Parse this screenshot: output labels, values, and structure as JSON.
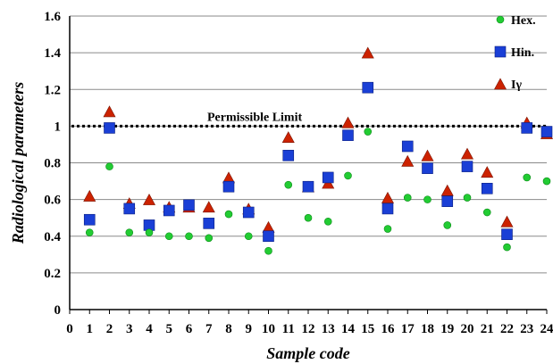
{
  "chart_data": {
    "type": "scatter",
    "title": "",
    "xlabel": "Sample code",
    "ylabel": "Radiological parameters",
    "x": [
      1,
      2,
      3,
      4,
      5,
      6,
      7,
      8,
      9,
      10,
      11,
      12,
      13,
      14,
      15,
      16,
      17,
      18,
      19,
      20,
      21,
      22,
      23,
      24
    ],
    "xlim": [
      0,
      24
    ],
    "ylim": [
      0,
      1.6
    ],
    "xticks": [
      0,
      1,
      2,
      3,
      4,
      5,
      6,
      7,
      8,
      9,
      10,
      11,
      12,
      13,
      14,
      15,
      16,
      17,
      18,
      19,
      20,
      21,
      22,
      23,
      24
    ],
    "yticks": [
      0,
      0.2,
      0.4,
      0.6,
      0.8,
      1,
      1.2,
      1.4,
      1.6
    ],
    "grid": "horizontal",
    "legend_position": "top-right",
    "series": [
      {
        "name": "Hex.",
        "marker": "circle",
        "color": "#22cc33",
        "values": [
          0.42,
          0.78,
          0.42,
          0.42,
          0.4,
          0.4,
          0.39,
          0.52,
          0.4,
          0.32,
          0.68,
          0.5,
          0.48,
          0.73,
          0.97,
          0.44,
          0.61,
          0.6,
          0.46,
          0.61,
          0.53,
          0.34,
          0.72,
          0.7
        ]
      },
      {
        "name": "Hin.",
        "marker": "square",
        "color": "#1a3fd6",
        "values": [
          0.49,
          0.99,
          0.55,
          0.46,
          0.54,
          0.57,
          0.47,
          0.67,
          0.53,
          0.4,
          0.84,
          0.67,
          0.72,
          0.95,
          1.21,
          0.55,
          0.89,
          0.77,
          0.59,
          0.78,
          0.66,
          0.41,
          0.99,
          0.97
        ]
      },
      {
        "name": "Iγ",
        "marker": "triangle",
        "color": "#cc2200",
        "values": [
          0.62,
          1.08,
          0.58,
          0.6,
          0.56,
          0.56,
          0.56,
          0.72,
          0.55,
          0.45,
          0.94,
          0.67,
          0.69,
          1.02,
          1.4,
          0.61,
          0.81,
          0.84,
          0.65,
          0.85,
          0.75,
          0.48,
          1.02,
          0.96
        ]
      }
    ],
    "annotations": [
      {
        "text": "Permissible Limit",
        "y": 1.0,
        "line": "dotted"
      }
    ]
  }
}
